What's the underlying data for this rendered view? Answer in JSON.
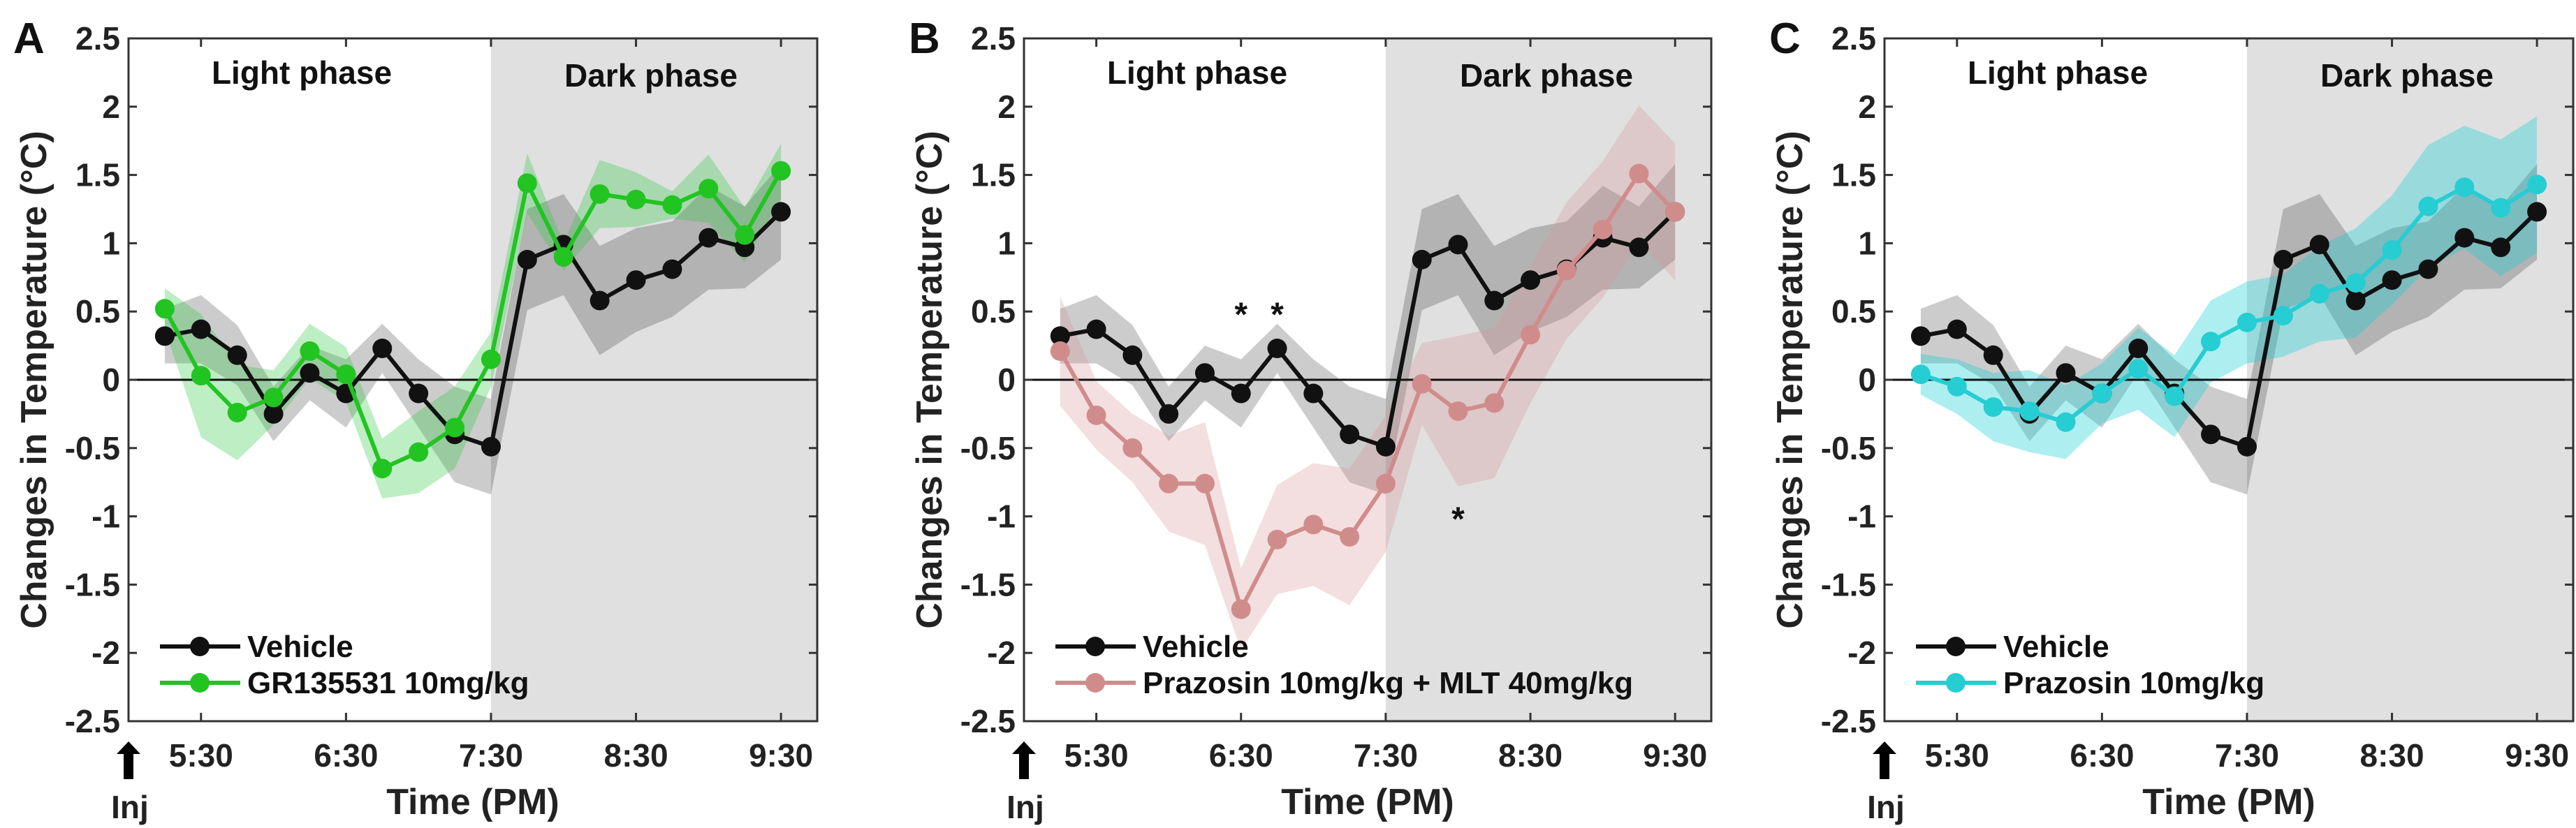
{
  "chart_data": [
    {
      "type": "line",
      "panel_label": "A",
      "xlabel": "Time (PM)",
      "ylabel": "Changes in Temperature (°C)",
      "ylim": [
        -2.5,
        2.5
      ],
      "yticks": [
        "2.5",
        "2",
        "1.5",
        "1",
        "0.5",
        "0",
        "-0.5",
        "-1",
        "-1.5",
        "-2",
        "-2.5"
      ],
      "xlim_minutes_after_5pm": [
        0,
        285
      ],
      "xtick_labels": [
        "5:30",
        "6:30",
        "7:30",
        "8:30",
        "9:30"
      ],
      "xtick_minutes_after_5pm": [
        30,
        90,
        150,
        210,
        270
      ],
      "x_minutes_after_5pm": [
        15,
        30,
        45,
        60,
        75,
        90,
        105,
        120,
        135,
        150,
        165,
        180,
        195,
        210,
        225,
        240,
        255,
        270
      ],
      "x_labels": [
        "5:15",
        "5:30",
        "5:45",
        "6:00",
        "6:15",
        "6:30",
        "6:45",
        "7:00",
        "7:15",
        "7:30",
        "7:45",
        "8:00",
        "8:15",
        "8:30",
        "8:45",
        "9:00",
        "9:15",
        "9:30"
      ],
      "dark_phase_start_minutes": 150,
      "phase_labels": {
        "light": "Light phase",
        "dark": "Dark phase"
      },
      "injection_label": "Inj",
      "legend_placement": "bottom-left",
      "series": [
        {
          "name": "Vehicle",
          "color": "#111111",
          "band_color": "rgba(0,0,0,0.2)",
          "values": [
            0.32,
            0.37,
            0.18,
            -0.25,
            0.05,
            -0.1,
            0.23,
            -0.1,
            -0.4,
            -0.49,
            0.88,
            0.99,
            0.58,
            0.73,
            0.81,
            1.04,
            0.97,
            1.23
          ],
          "sem": [
            0.2,
            0.25,
            0.22,
            0.2,
            0.2,
            0.25,
            0.18,
            0.25,
            0.35,
            0.35,
            0.37,
            0.37,
            0.4,
            0.38,
            0.35,
            0.38,
            0.3,
            0.35
          ]
        },
        {
          "name": "GR135531 10mg/kg",
          "color": "#22c422",
          "band_color": "rgba(40,200,60,0.3)",
          "values": [
            0.52,
            0.03,
            -0.24,
            -0.13,
            0.21,
            0.04,
            -0.65,
            -0.53,
            -0.35,
            0.15,
            1.44,
            0.9,
            1.36,
            1.32,
            1.28,
            1.4,
            1.06,
            1.53
          ],
          "sem": [
            0.15,
            0.45,
            0.35,
            0.2,
            0.2,
            0.2,
            0.22,
            0.3,
            0.3,
            0.2,
            0.22,
            0.1,
            0.25,
            0.2,
            0.1,
            0.25,
            0.2,
            0.2
          ]
        }
      ],
      "annotations": []
    },
    {
      "type": "line",
      "panel_label": "B",
      "xlabel": "Time (PM)",
      "ylabel": "Changes in Temperature (°C)",
      "ylim": [
        -2.5,
        2.5
      ],
      "yticks": [
        "2.5",
        "2",
        "1.5",
        "1",
        "0.5",
        "0",
        "-0.5",
        "-1",
        "-1.5",
        "-2",
        "-2.5"
      ],
      "xlim_minutes_after_5pm": [
        0,
        285
      ],
      "xtick_labels": [
        "5:30",
        "6:30",
        "7:30",
        "8:30",
        "9:30"
      ],
      "xtick_minutes_after_5pm": [
        30,
        90,
        150,
        210,
        270
      ],
      "x_minutes_after_5pm": [
        15,
        30,
        45,
        60,
        75,
        90,
        105,
        120,
        135,
        150,
        165,
        180,
        195,
        210,
        225,
        240,
        255,
        270
      ],
      "x_labels": [
        "5:15",
        "5:30",
        "5:45",
        "6:00",
        "6:15",
        "6:30",
        "6:45",
        "7:00",
        "7:15",
        "7:30",
        "7:45",
        "8:00",
        "8:15",
        "8:30",
        "8:45",
        "9:00",
        "9:15",
        "9:30"
      ],
      "dark_phase_start_minutes": 150,
      "phase_labels": {
        "light": "Light phase",
        "dark": "Dark phase"
      },
      "injection_label": "Inj",
      "legend_placement": "bottom-left",
      "series": [
        {
          "name": "Vehicle",
          "color": "#111111",
          "band_color": "rgba(0,0,0,0.2)",
          "values": [
            0.32,
            0.37,
            0.18,
            -0.25,
            0.05,
            -0.1,
            0.23,
            -0.1,
            -0.4,
            -0.49,
            0.88,
            0.99,
            0.58,
            0.73,
            0.81,
            1.04,
            0.97,
            1.23
          ],
          "sem": [
            0.2,
            0.25,
            0.22,
            0.2,
            0.2,
            0.25,
            0.18,
            0.25,
            0.35,
            0.35,
            0.37,
            0.37,
            0.4,
            0.38,
            0.35,
            0.38,
            0.3,
            0.35
          ]
        },
        {
          "name": "Prazosin 10mg/kg + MLT 40mg/kg",
          "color": "#d08c8b",
          "band_color": "rgba(215,150,150,0.3)",
          "values": [
            0.21,
            -0.26,
            -0.5,
            -0.76,
            -0.76,
            -1.68,
            -1.17,
            -1.06,
            -1.15,
            -0.76,
            -0.03,
            -0.23,
            -0.17,
            0.33,
            0.8,
            1.1,
            1.51,
            1.23
          ],
          "sem": [
            0.4,
            0.25,
            0.25,
            0.35,
            0.45,
            0.3,
            0.4,
            0.45,
            0.5,
            0.5,
            0.3,
            0.55,
            0.55,
            0.5,
            0.5,
            0.5,
            0.5,
            0.5
          ]
        }
      ],
      "annotations": [
        {
          "text": "*",
          "x_minutes_after_5pm": 90,
          "y": 0.52
        },
        {
          "text": "*",
          "x_minutes_after_5pm": 105,
          "y": 0.52
        },
        {
          "text": "*",
          "x_minutes_after_5pm": 180,
          "y": -0.98
        }
      ]
    },
    {
      "type": "line",
      "panel_label": "C",
      "xlabel": "Time (PM)",
      "ylabel": "Changes in Temperature (°C)",
      "ylim": [
        -2.5,
        2.5
      ],
      "yticks": [
        "2.5",
        "2",
        "1.5",
        "1",
        "0.5",
        "0",
        "-0.5",
        "-1",
        "-1.5",
        "-2",
        "-2.5"
      ],
      "xlim_minutes_after_5pm": [
        0,
        285
      ],
      "xtick_labels": [
        "5:30",
        "6:30",
        "7:30",
        "8:30",
        "9:30"
      ],
      "xtick_minutes_after_5pm": [
        30,
        90,
        150,
        210,
        270
      ],
      "x_minutes_after_5pm": [
        15,
        30,
        45,
        60,
        75,
        90,
        105,
        120,
        135,
        150,
        165,
        180,
        195,
        210,
        225,
        240,
        255,
        270
      ],
      "x_labels": [
        "5:15",
        "5:30",
        "5:45",
        "6:00",
        "6:15",
        "6:30",
        "6:45",
        "7:00",
        "7:15",
        "7:30",
        "7:45",
        "8:00",
        "8:15",
        "8:30",
        "8:45",
        "9:00",
        "9:15",
        "9:30"
      ],
      "dark_phase_start_minutes": 150,
      "phase_labels": {
        "light": "Light phase",
        "dark": "Dark phase"
      },
      "injection_label": "Inj",
      "legend_placement": "bottom-left",
      "series": [
        {
          "name": "Vehicle",
          "color": "#111111",
          "band_color": "rgba(0,0,0,0.2)",
          "values": [
            0.32,
            0.37,
            0.18,
            -0.25,
            0.05,
            -0.1,
            0.23,
            -0.1,
            -0.4,
            -0.49,
            0.88,
            0.99,
            0.58,
            0.73,
            0.81,
            1.04,
            0.97,
            1.23
          ],
          "sem": [
            0.2,
            0.25,
            0.22,
            0.2,
            0.2,
            0.25,
            0.18,
            0.25,
            0.35,
            0.35,
            0.37,
            0.37,
            0.4,
            0.38,
            0.35,
            0.38,
            0.3,
            0.35
          ]
        },
        {
          "name": "Prazosin 10mg/kg",
          "color": "#26cdd2",
          "band_color": "rgba(20,205,215,0.35)",
          "values": [
            0.04,
            -0.05,
            -0.2,
            -0.23,
            -0.31,
            -0.1,
            0.08,
            -0.12,
            0.28,
            0.42,
            0.47,
            0.63,
            0.71,
            0.95,
            1.27,
            1.41,
            1.26,
            1.43
          ],
          "sem": [
            0.15,
            0.2,
            0.25,
            0.3,
            0.27,
            0.22,
            0.3,
            0.3,
            0.3,
            0.3,
            0.3,
            0.35,
            0.4,
            0.4,
            0.45,
            0.45,
            0.5,
            0.5
          ]
        }
      ],
      "annotations": []
    }
  ]
}
